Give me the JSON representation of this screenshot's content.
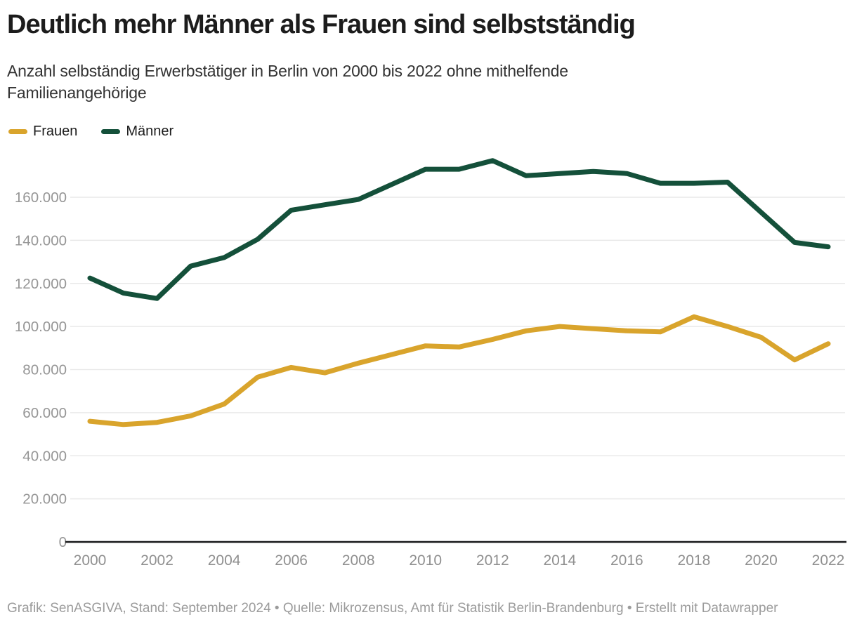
{
  "header": {
    "title": "Deutlich mehr Männer als Frauen sind selbstständig",
    "subtitle": "Anzahl selbständig Erwerbstätiger in Berlin von 2000 bis 2022 ohne mithelfende Familienangehörige"
  },
  "chart_data": {
    "type": "line",
    "title": "Deutlich mehr Männer als Frauen sind selbstständig",
    "subtitle": "Anzahl selbständig Erwerbstätiger in Berlin von 2000 bis 2022 ohne mithelfende Familienangehörige",
    "x": [
      2000,
      2001,
      2002,
      2003,
      2004,
      2005,
      2006,
      2007,
      2008,
      2009,
      2010,
      2011,
      2012,
      2013,
      2014,
      2015,
      2016,
      2017,
      2018,
      2019,
      2020,
      2021,
      2022
    ],
    "series": [
      {
        "name": "Frauen",
        "color": "#D9A42C",
        "values": [
          56000,
          54500,
          55500,
          58500,
          64000,
          76500,
          81000,
          78500,
          83000,
          87000,
          91000,
          90500,
          94000,
          98000,
          100000,
          99000,
          98000,
          97500,
          104500,
          100000,
          95000,
          84500,
          92000
        ]
      },
      {
        "name": "Männer",
        "color": "#14503A",
        "values": [
          122500,
          115500,
          113000,
          128000,
          132000,
          140500,
          154000,
          156500,
          159000,
          166000,
          173000,
          173000,
          177000,
          170000,
          171000,
          172000,
          171000,
          166500,
          166500,
          167000,
          153000,
          139000,
          137000
        ]
      }
    ],
    "x_ticks": [
      2000,
      2002,
      2004,
      2006,
      2008,
      2010,
      2012,
      2014,
      2016,
      2018,
      2020,
      2022
    ],
    "y_ticks": [
      0,
      20000,
      40000,
      60000,
      80000,
      100000,
      120000,
      140000,
      160000
    ],
    "y_tick_labels": [
      "0",
      "20.000",
      "40.000",
      "60.000",
      "80.000",
      "100.000",
      "120.000",
      "140.000",
      "160.000"
    ],
    "ylim": [
      0,
      160000
    ],
    "grid": "horizontal",
    "legend_position": "top-left",
    "axis_color": "#18191a",
    "grid_color": "#e9e9e9",
    "tick_label_color": "#969696"
  },
  "footer": {
    "text": "Grafik: SenASGIVA, Stand: September 2024 • Quelle: Mikrozensus, Amt für Statistik Berlin-Brandenburg • Erstellt mit Datawrapper"
  }
}
